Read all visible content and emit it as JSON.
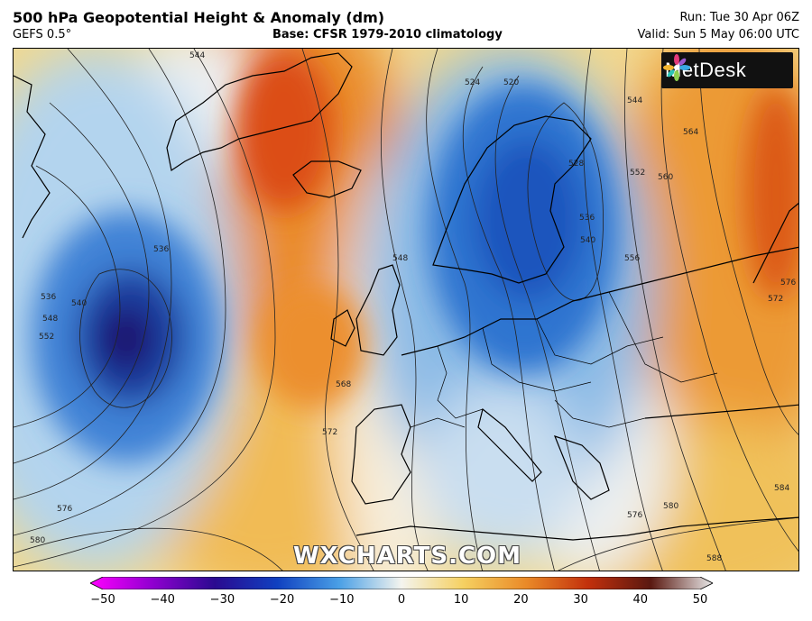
{
  "header": {
    "title": "500 hPa Geopotential Height & Anomaly (dm)",
    "model": "GEFS 0.5°",
    "base": "Base: CFSR 1979-2010 climatology",
    "run": "Run: Tue 30 Apr 06Z",
    "valid": "Valid: Sun 5 May 06:00 UTC"
  },
  "branding": {
    "logo_text": "MetDesk",
    "watermark": "WXCHARTS.COM"
  },
  "colorbar": {
    "ticks": [
      "−50",
      "−40",
      "−30",
      "−20",
      "−10",
      "0",
      "10",
      "20",
      "30",
      "40",
      "50"
    ],
    "min": -50,
    "max": 50
  },
  "contour_labels": [
    "544",
    "524",
    "520",
    "544",
    "564",
    "552",
    "560",
    "536",
    "528",
    "536",
    "540",
    "556",
    "548",
    "536",
    "540",
    "548",
    "552",
    "568",
    "572",
    "576",
    "580",
    "576",
    "580",
    "584",
    "588",
    "572",
    "576"
  ],
  "colors": {
    "strong_negative": "#1a0f6e",
    "negative": "#1f5fc8",
    "weak_negative": "#a9cdeb",
    "neutral": "#f4f1e6",
    "weak_positive": "#f5cf6a",
    "positive": "#eb8a2a",
    "strong_positive": "#d9410f"
  }
}
